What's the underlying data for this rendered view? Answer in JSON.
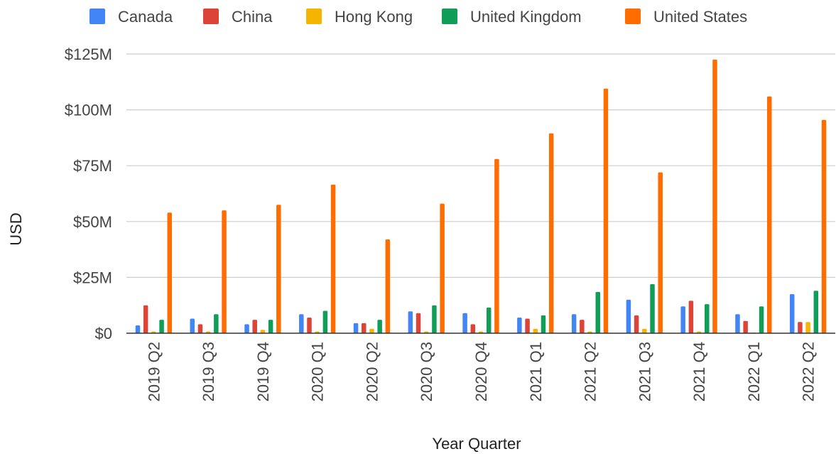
{
  "chart_data": {
    "type": "bar",
    "title": "",
    "xlabel": "Year Quarter",
    "ylabel": "USD",
    "ylim": [
      0,
      125
    ],
    "y_unit": "millions USD",
    "y_ticks": [
      {
        "value": 0,
        "label": "$0"
      },
      {
        "value": 25,
        "label": "$25M"
      },
      {
        "value": 50,
        "label": "$50M"
      },
      {
        "value": 75,
        "label": "$75M"
      },
      {
        "value": 100,
        "label": "$100M"
      },
      {
        "value": 125,
        "label": "$125M"
      }
    ],
    "grid": true,
    "legend_position": "top",
    "categories": [
      "2019 Q2",
      "2019 Q3",
      "2019 Q4",
      "2020 Q1",
      "2020 Q2",
      "2020 Q3",
      "2020 Q4",
      "2021 Q1",
      "2021 Q2",
      "2021 Q3",
      "2021 Q4",
      "2022 Q1",
      "2022 Q2"
    ],
    "series": [
      {
        "name": "Canada",
        "color": "#4285f4",
        "values": [
          3.5,
          6.5,
          4,
          8.5,
          4.5,
          9.8,
          9,
          7,
          8.5,
          15,
          12,
          8.5,
          17.5
        ]
      },
      {
        "name": "China",
        "color": "#db4437",
        "values": [
          12.5,
          4,
          6,
          7,
          4.5,
          9,
          4,
          6.5,
          6,
          8,
          14.5,
          5.5,
          5
        ]
      },
      {
        "name": "Hong Kong",
        "color": "#f4b400",
        "values": [
          0.8,
          0.8,
          1.5,
          0.8,
          2,
          0.8,
          0.8,
          2,
          0.8,
          2,
          0.8,
          0.3,
          5
        ]
      },
      {
        "name": "United Kingdom",
        "color": "#0f9d58",
        "values": [
          6,
          8.5,
          6,
          10,
          6,
          12.5,
          11.5,
          8,
          18.5,
          22,
          13,
          12,
          19
        ]
      },
      {
        "name": "United States",
        "color": "#ff6d01",
        "values": [
          54,
          55,
          57.5,
          66.5,
          42,
          58,
          78,
          89.5,
          109.5,
          72,
          122.5,
          106,
          95.5
        ]
      }
    ]
  }
}
